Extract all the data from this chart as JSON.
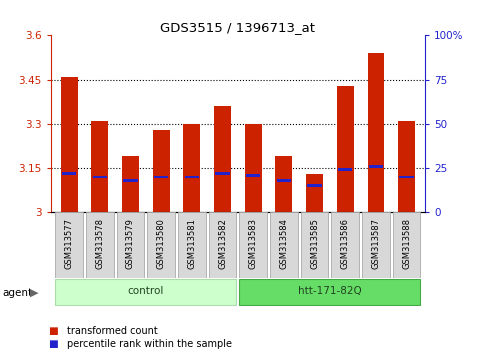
{
  "title": "GDS3515 / 1396713_at",
  "samples": [
    "GSM313577",
    "GSM313578",
    "GSM313579",
    "GSM313580",
    "GSM313581",
    "GSM313582",
    "GSM313583",
    "GSM313584",
    "GSM313585",
    "GSM313586",
    "GSM313587",
    "GSM313588"
  ],
  "transformed_count": [
    3.46,
    3.31,
    3.19,
    3.28,
    3.3,
    3.36,
    3.3,
    3.19,
    3.13,
    3.43,
    3.54,
    3.31
  ],
  "percentile_rank": [
    22,
    20,
    18,
    20,
    20,
    22,
    21,
    18,
    15,
    24,
    26,
    20
  ],
  "ymin": 3.0,
  "ymax": 3.6,
  "yticks": [
    3.0,
    3.15,
    3.3,
    3.45,
    3.6
  ],
  "ytick_labels": [
    "3",
    "3.15",
    "3.3",
    "3.45",
    "3.6"
  ],
  "y2ticks": [
    0,
    25,
    50,
    75,
    100
  ],
  "y2tick_labels": [
    "0",
    "25",
    "50",
    "75",
    "100%"
  ],
  "groups": [
    {
      "label": "control",
      "indices": [
        0,
        1,
        2,
        3,
        4,
        5
      ],
      "color": "#ccffcc",
      "border": "#aaddaa"
    },
    {
      "label": "htt-171-82Q",
      "indices": [
        6,
        7,
        8,
        9,
        10,
        11
      ],
      "color": "#66dd66",
      "border": "#44aa44"
    }
  ],
  "bar_color": "#cc2200",
  "blue_color": "#2222cc",
  "bar_width": 0.55,
  "agent_label": "agent",
  "legend_items": [
    {
      "label": "transformed count",
      "color": "#cc2200"
    },
    {
      "label": "percentile rank within the sample",
      "color": "#2222cc"
    }
  ]
}
